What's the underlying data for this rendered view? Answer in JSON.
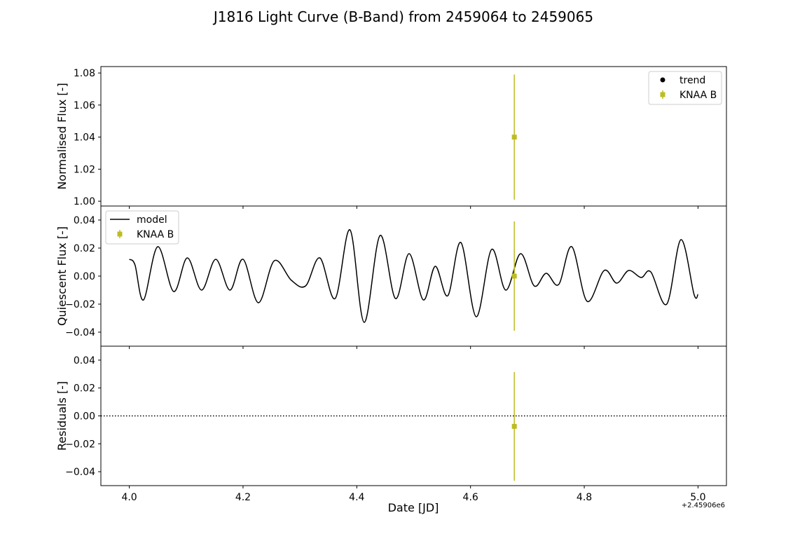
{
  "chart_data": {
    "type": "scatter",
    "title": "J1816 Light Curve (B-Band) from 2459064 to 2459065",
    "xlabel": "Date [JD]",
    "x_offset_label": "+2.45906e6",
    "xlim": [
      3.95,
      5.05
    ],
    "xticks": [
      4.0,
      4.2,
      4.4,
      4.6,
      4.8,
      5.0
    ],
    "xtick_labels": [
      "4.0",
      "4.2",
      "4.4",
      "4.6",
      "4.8",
      "5.0"
    ],
    "colors": {
      "knaa": "#bcbd22",
      "model": "#000000",
      "trend": "#000000"
    },
    "panels": [
      {
        "id": "top",
        "ylabel": "Normalised Flux [-]",
        "ylim": [
          0.997,
          1.084
        ],
        "yticks": [
          1.0,
          1.02,
          1.04,
          1.06,
          1.08
        ],
        "ytick_labels": [
          "1.00",
          "1.02",
          "1.04",
          "1.06",
          "1.08"
        ],
        "legend": {
          "loc": "upper right",
          "entries": [
            {
              "label": "trend",
              "kind": "dot",
              "color": "#000000"
            },
            {
              "label": "KNAA B",
              "kind": "errorbar",
              "color": "#bcbd22"
            }
          ]
        },
        "series": [
          {
            "name": "KNAA B",
            "kind": "errorbar",
            "color": "#bcbd22",
            "points": [
              {
                "x": 4.677,
                "y": 1.04,
                "yerr": 0.039
              }
            ]
          }
        ]
      },
      {
        "id": "middle",
        "ylabel": "Quiescent Flux [-]",
        "ylim": [
          -0.05,
          0.05
        ],
        "yticks": [
          -0.04,
          -0.02,
          0.0,
          0.02,
          0.04
        ],
        "ytick_labels": [
          "−0.04",
          "−0.02",
          "0.00",
          "0.02",
          "0.04"
        ],
        "legend": {
          "loc": "upper left",
          "entries": [
            {
              "label": "model",
              "kind": "line",
              "color": "#000000"
            },
            {
              "label": "KNAA B",
              "kind": "errorbar",
              "color": "#bcbd22"
            }
          ]
        },
        "series": [
          {
            "name": "model",
            "kind": "line",
            "color": "#000000",
            "points": [
              [
                4.0,
                0.012
              ],
              [
                4.01,
                0.008
              ],
              [
                4.025,
                -0.017
              ],
              [
                4.05,
                0.021
              ],
              [
                4.078,
                -0.011
              ],
              [
                4.102,
                0.013
              ],
              [
                4.127,
                -0.01
              ],
              [
                4.152,
                0.012
              ],
              [
                4.177,
                -0.01
              ],
              [
                4.2,
                0.012
              ],
              [
                4.227,
                -0.019
              ],
              [
                4.255,
                0.011
              ],
              [
                4.285,
                -0.003
              ],
              [
                4.31,
                -0.007
              ],
              [
                4.335,
                0.013
              ],
              [
                4.362,
                -0.016
              ],
              [
                4.388,
                0.033
              ],
              [
                4.413,
                -0.033
              ],
              [
                4.441,
                0.029
              ],
              [
                4.468,
                -0.016
              ],
              [
                4.492,
                0.016
              ],
              [
                4.517,
                -0.017
              ],
              [
                4.538,
                0.007
              ],
              [
                4.56,
                -0.014
              ],
              [
                4.583,
                0.024
              ],
              [
                4.61,
                -0.029
              ],
              [
                4.637,
                0.019
              ],
              [
                4.662,
                -0.01
              ],
              [
                4.688,
                0.016
              ],
              [
                4.712,
                -0.007
              ],
              [
                4.733,
                0.002
              ],
              [
                4.755,
                -0.006
              ],
              [
                4.778,
                0.021
              ],
              [
                4.805,
                -0.018
              ],
              [
                4.835,
                0.004
              ],
              [
                4.857,
                -0.005
              ],
              [
                4.878,
                0.004
              ],
              [
                4.9,
                -0.001
              ],
              [
                4.917,
                0.003
              ],
              [
                4.945,
                -0.02
              ],
              [
                4.97,
                0.026
              ],
              [
                4.993,
                -0.013
              ],
              [
                5.0,
                -0.013
              ]
            ]
          },
          {
            "name": "KNAA B",
            "kind": "errorbar",
            "color": "#bcbd22",
            "points": [
              {
                "x": 4.677,
                "y": 0.0,
                "yerr": 0.039
              }
            ]
          }
        ]
      },
      {
        "id": "bottom",
        "ylabel": "Residuals [-]",
        "ylim": [
          -0.05,
          0.05
        ],
        "yticks": [
          -0.04,
          -0.02,
          0.0,
          0.02,
          0.04
        ],
        "ytick_labels": [
          "−0.04",
          "−0.02",
          "0.00",
          "0.02",
          "0.04"
        ],
        "reference_line": {
          "y": 0.0,
          "style": "dotted",
          "color": "#000000"
        },
        "series": [
          {
            "name": "KNAA B",
            "kind": "errorbar",
            "color": "#bcbd22",
            "points": [
              {
                "x": 4.677,
                "y": -0.0075,
                "yerr": 0.039
              }
            ]
          }
        ]
      }
    ]
  }
}
